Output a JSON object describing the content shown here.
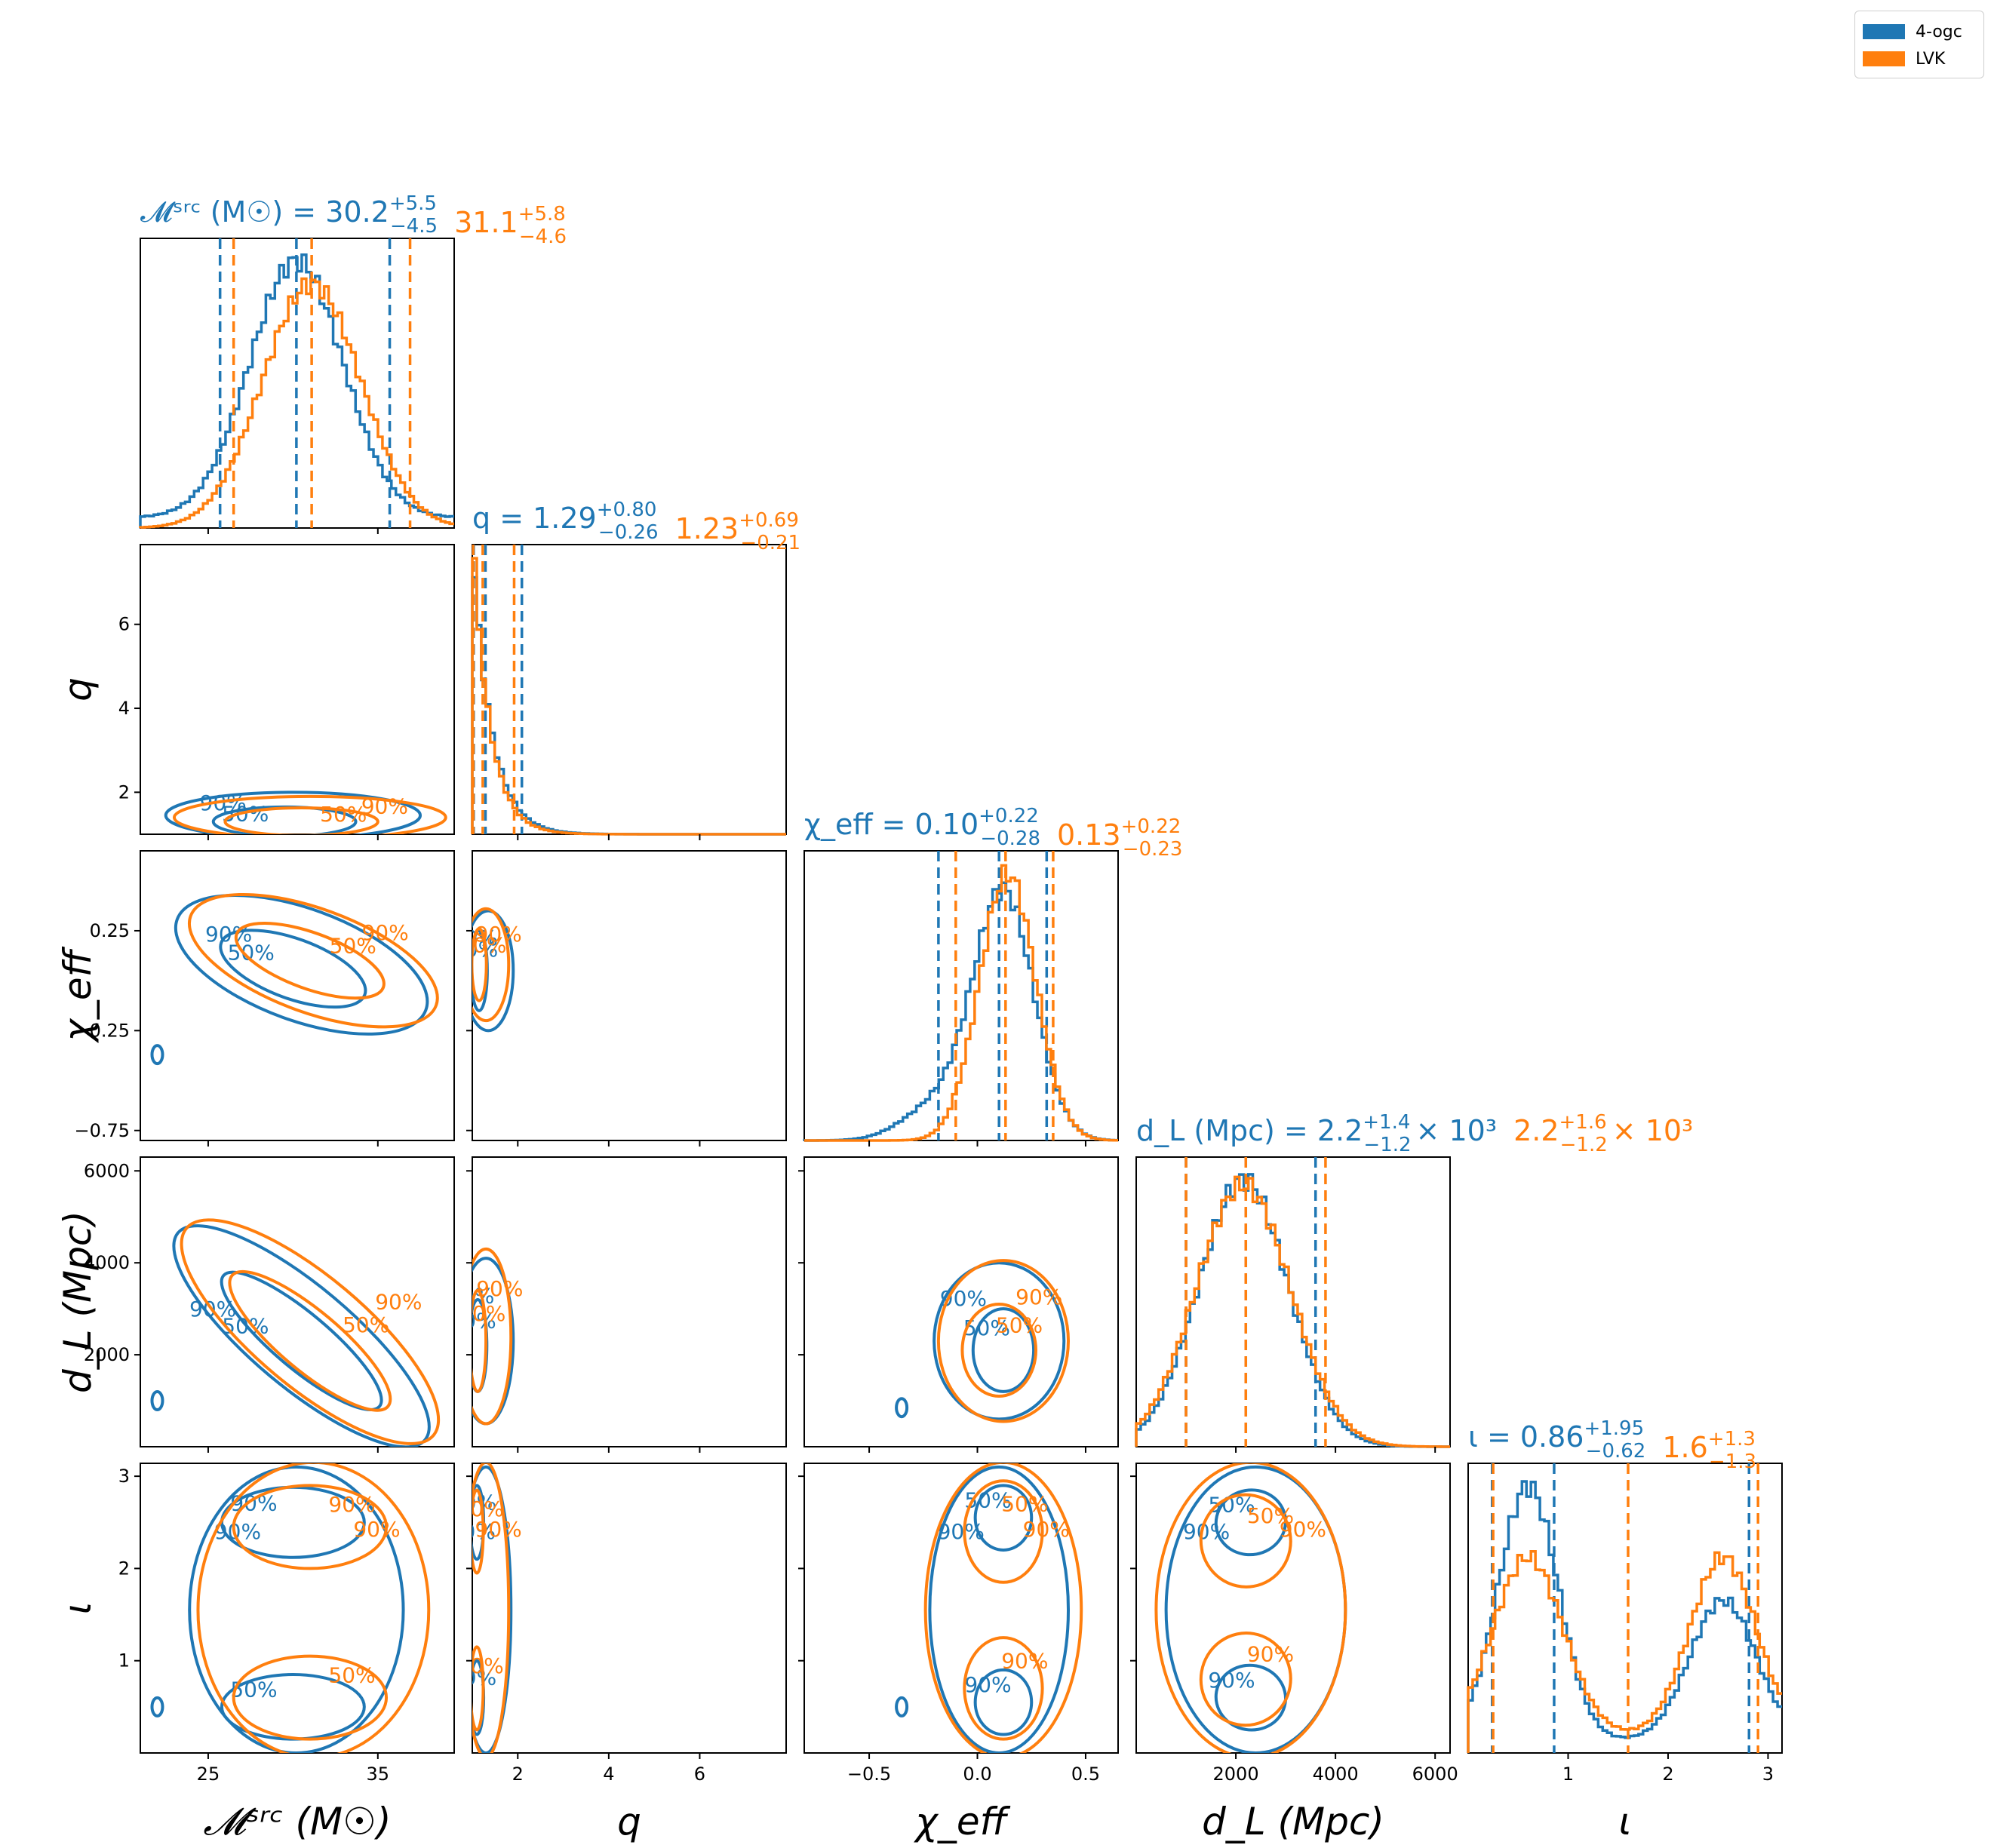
{
  "colors": {
    "series_a": "#1f77b4",
    "series_b": "#ff7f0e"
  },
  "legend": {
    "entries": [
      "4-ogc",
      "LVK"
    ],
    "placement": "top-right"
  },
  "chart_data": {
    "type": "corner",
    "series": [
      {
        "name": "4-ogc",
        "color": "#1f77b4"
      },
      {
        "name": "LVK",
        "color": "#ff7f0e"
      }
    ],
    "parameters": [
      {
        "key": "mchirp",
        "axis_label": "𝓜ˢʳᶜ (M☉)",
        "range": [
          21,
          39.5
        ],
        "ticks": [
          25,
          35
        ],
        "tick_labels": [
          "25",
          "35"
        ],
        "titles": [
          {
            "base": "𝓜ˢʳᶜ (M☉) = 30.2",
            "plus": "+5.5",
            "minus": "−4.5",
            "suffix": ""
          },
          {
            "base": "31.1",
            "plus": "+5.8",
            "minus": "−4.6",
            "suffix": ""
          }
        ],
        "quantiles": [
          [
            25.7,
            30.2,
            35.7
          ],
          [
            26.5,
            31.1,
            36.9
          ]
        ],
        "hist": [
          {
            "shape": "gauss",
            "peaks": [
              {
                "mu": 30.2,
                "sd": 2.75,
                "a": 1.0
              }
            ],
            "floor": 0.04
          },
          {
            "shape": "gauss",
            "peaks": [
              {
                "mu": 31.1,
                "sd": 2.9,
                "a": 0.95
              }
            ],
            "floor": 0.0
          }
        ]
      },
      {
        "key": "q",
        "axis_label": "q",
        "range": [
          1.0,
          7.9
        ],
        "ticks": [
          2,
          4,
          6
        ],
        "tick_labels": [
          "2",
          "4",
          "6"
        ],
        "titles": [
          {
            "base": "q = 1.29",
            "plus": "+0.80",
            "minus": "−0.26",
            "suffix": ""
          },
          {
            "base": "1.23",
            "plus": "+0.69",
            "minus": "−0.21",
            "suffix": ""
          }
        ],
        "quantiles": [
          [
            1.03,
            1.29,
            2.09
          ],
          [
            1.02,
            1.23,
            1.92
          ]
        ],
        "hist": [
          {
            "shape": "exp",
            "start": 1.0,
            "scale": 0.42,
            "a": 0.95
          },
          {
            "shape": "exp",
            "start": 1.0,
            "scale": 0.38,
            "a": 1.0
          }
        ]
      },
      {
        "key": "chi_eff",
        "axis_label": "χ_eff",
        "range": [
          -0.8,
          0.65
        ],
        "ticks": [
          -0.75,
          -0.25,
          0.25
        ],
        "tick_labels": [
          "−0.75",
          "−0.25",
          "0.25"
        ],
        "xticks": [
          -0.5,
          0.0,
          0.5
        ],
        "xtick_labels": [
          "−0.5",
          "0.0",
          "0.5"
        ],
        "titles": [
          {
            "base": "χ_eff = 0.10",
            "plus": "+0.22",
            "minus": "−0.28",
            "suffix": ""
          },
          {
            "base": "0.13",
            "plus": "+0.22",
            "minus": "−0.23",
            "suffix": ""
          }
        ],
        "quantiles": [
          [
            -0.18,
            0.1,
            0.32
          ],
          [
            -0.1,
            0.13,
            0.35
          ]
        ],
        "hist": [
          {
            "shape": "gauss",
            "peaks": [
              {
                "mu": 0.12,
                "sd": 0.14,
                "a": 0.93
              },
              {
                "mu": -0.2,
                "sd": 0.15,
                "a": 0.12
              }
            ],
            "floor": 0.0
          },
          {
            "shape": "gauss",
            "peaks": [
              {
                "mu": 0.14,
                "sd": 0.13,
                "a": 1.0
              }
            ],
            "floor": 0.0
          }
        ]
      },
      {
        "key": "dl",
        "axis_label": "d_L (Mpc)",
        "range": [
          0,
          6300
        ],
        "ticks": [
          2000,
          4000,
          6000
        ],
        "tick_labels": [
          "2000",
          "4000",
          "6000"
        ],
        "titles": [
          {
            "base": "d_L (Mpc) = 2.2",
            "plus": "+1.4",
            "minus": "−1.2",
            "suffix": "× 10³"
          },
          {
            "base": "2.2",
            "plus": "+1.6",
            "minus": "−1.2",
            "suffix": "× 10³"
          }
        ],
        "quantiles": [
          [
            1000,
            2200,
            3600
          ],
          [
            1000,
            2200,
            3800
          ]
        ],
        "hist": [
          {
            "shape": "gauss",
            "peaks": [
              {
                "mu": 2150,
                "sd": 900,
                "a": 1.0
              }
            ],
            "floor": 0.0
          },
          {
            "shape": "gauss",
            "peaks": [
              {
                "mu": 2150,
                "sd": 950,
                "a": 0.98
              }
            ],
            "floor": 0.0
          }
        ]
      },
      {
        "key": "inc",
        "axis_label": "ι",
        "range": [
          0,
          3.14
        ],
        "ticks": [
          1,
          2,
          3
        ],
        "tick_labels": [
          "1",
          "2",
          "3"
        ],
        "titles": [
          {
            "base": "ι = 0.86",
            "plus": "+1.95",
            "minus": "−0.62",
            "suffix": ""
          },
          {
            "base": "1.6",
            "plus": "+1.3",
            "minus": "−1.3",
            "suffix": ""
          }
        ],
        "quantiles": [
          [
            0.24,
            0.86,
            2.81
          ],
          [
            0.25,
            1.6,
            2.9
          ]
        ],
        "hist": [
          {
            "shape": "gauss",
            "peaks": [
              {
                "mu": 0.6,
                "sd": 0.3,
                "a": 1.0
              },
              {
                "mu": 2.55,
                "sd": 0.33,
                "a": 0.55
              }
            ],
            "floor": 0.05
          },
          {
            "shape": "gauss",
            "peaks": [
              {
                "mu": 0.6,
                "sd": 0.35,
                "a": 0.7
              },
              {
                "mu": 2.55,
                "sd": 0.33,
                "a": 0.7
              }
            ],
            "floor": 0.07
          }
        ]
      }
    ],
    "contour_levels": [
      "50%",
      "90%"
    ],
    "pairs": [
      {
        "x": "mchirp",
        "y": "q",
        "labels": [
          [
            "50%",
            "90%"
          ],
          [
            "50%",
            "90%"
          ]
        ],
        "contours": [
          [
            {
              "cx": 29.5,
              "cy": 1.3,
              "rx": 4.2,
              "ry": 0.35,
              "rot": 0
            },
            {
              "cx": 30.0,
              "cy": 1.45,
              "rx": 7.5,
              "ry": 0.55,
              "rot": 0
            }
          ],
          [
            {
              "cx": 30.5,
              "cy": 1.3,
              "rx": 4.5,
              "ry": 0.33,
              "rot": 0
            },
            {
              "cx": 31.0,
              "cy": 1.4,
              "rx": 8.0,
              "ry": 0.5,
              "rot": 0
            }
          ]
        ]
      },
      {
        "x": "mchirp",
        "y": "chi_eff",
        "labels": [
          [
            "50%",
            "90%"
          ],
          [
            "50%",
            "90%"
          ]
        ],
        "contours": [
          [
            {
              "cx": 30.0,
              "cy": 0.06,
              "rx": 4.5,
              "ry": 0.15,
              "rot": 20
            },
            {
              "cx": 30.5,
              "cy": 0.08,
              "rx": 7.8,
              "ry": 0.28,
              "rot": 20
            }
          ],
          [
            {
              "cx": 31.0,
              "cy": 0.1,
              "rx": 4.6,
              "ry": 0.14,
              "rot": 20
            },
            {
              "cx": 31.2,
              "cy": 0.1,
              "rx": 7.7,
              "ry": 0.26,
              "rot": 20
            }
          ]
        ],
        "island": {
          "x": 22.0,
          "y": -0.37
        }
      },
      {
        "x": "mchirp",
        "y": "dl",
        "labels": [
          [
            "50%",
            "90%"
          ],
          [
            "50%",
            "90%"
          ]
        ],
        "contours": [
          [
            {
              "cx": 30.5,
              "cy": 2300,
              "rx": 6.0,
              "ry": 600,
              "rot": 40
            },
            {
              "cx": 30.5,
              "cy": 2400,
              "rx": 9.5,
              "ry": 1100,
              "rot": 40
            }
          ],
          [
            {
              "cx": 31.0,
              "cy": 2300,
              "rx": 6.0,
              "ry": 650,
              "rot": 40
            },
            {
              "cx": 31.0,
              "cy": 2500,
              "rx": 9.5,
              "ry": 1200,
              "rot": 40
            }
          ]
        ],
        "island": {
          "x": 22.0,
          "y": 1000
        }
      },
      {
        "x": "mchirp",
        "y": "inc",
        "labels": [
          [
            "50%",
            "90%"
          ],
          [
            "50%",
            "90%"
          ]
        ],
        "contours": [
          [
            {
              "cx": 30.0,
              "cy": 0.5,
              "rx": 4.2,
              "ry": 0.35,
              "rot": 0
            },
            {
              "cx": 30.0,
              "cy": 2.5,
              "rx": 4.2,
              "ry": 0.38,
              "rot": 0
            },
            {
              "cx": 30.2,
              "cy": 1.55,
              "rx": 6.3,
              "ry": 1.55,
              "rot": 0
            }
          ],
          [
            {
              "cx": 31.0,
              "cy": 0.6,
              "rx": 4.5,
              "ry": 0.45,
              "rot": 0
            },
            {
              "cx": 31.0,
              "cy": 2.45,
              "rx": 4.5,
              "ry": 0.45,
              "rot": 0
            },
            {
              "cx": 31.2,
              "cy": 1.55,
              "rx": 6.8,
              "ry": 1.6,
              "rot": 0
            }
          ]
        ],
        "island": {
          "x": 22.0,
          "y": 0.5
        }
      },
      {
        "x": "q",
        "y": "chi_eff",
        "labels": [
          [
            "50%",
            "90%"
          ],
          [
            "50%",
            "90%"
          ]
        ],
        "contours": [
          [
            {
              "cx": 1.15,
              "cy": 0.05,
              "rx": 0.18,
              "ry": 0.2,
              "rot": 0
            },
            {
              "cx": 1.35,
              "cy": 0.05,
              "rx": 0.55,
              "ry": 0.3,
              "rot": 0
            }
          ],
          [
            {
              "cx": 1.15,
              "cy": 0.08,
              "rx": 0.16,
              "ry": 0.18,
              "rot": 0
            },
            {
              "cx": 1.3,
              "cy": 0.08,
              "rx": 0.5,
              "ry": 0.28,
              "rot": 0
            }
          ]
        ]
      },
      {
        "x": "q",
        "y": "dl",
        "labels": [
          [
            "50%",
            "90%"
          ],
          [
            "50%",
            "90%"
          ]
        ],
        "contours": [
          [
            {
              "cx": 1.12,
              "cy": 2200,
              "rx": 0.2,
              "ry": 1000,
              "rot": 0
            },
            {
              "cx": 1.3,
              "cy": 2300,
              "rx": 0.6,
              "ry": 1800,
              "rot": 0
            }
          ],
          [
            {
              "cx": 1.12,
              "cy": 2300,
              "rx": 0.18,
              "ry": 1100,
              "rot": 0
            },
            {
              "cx": 1.3,
              "cy": 2400,
              "rx": 0.55,
              "ry": 1900,
              "rot": 0
            }
          ]
        ]
      },
      {
        "x": "q",
        "y": "inc",
        "labels": [
          [
            "50%",
            "90%"
          ],
          [
            "50%",
            "90%"
          ]
        ],
        "contours": [
          [
            {
              "cx": 1.1,
              "cy": 2.5,
              "rx": 0.15,
              "ry": 0.4,
              "rot": 0
            },
            {
              "cx": 1.1,
              "cy": 0.6,
              "rx": 0.15,
              "ry": 0.4,
              "rot": 0
            },
            {
              "cx": 1.3,
              "cy": 1.55,
              "rx": 0.55,
              "ry": 1.55,
              "rot": 0
            }
          ],
          [
            {
              "cx": 1.1,
              "cy": 2.4,
              "rx": 0.14,
              "ry": 0.45,
              "rot": 0
            },
            {
              "cx": 1.1,
              "cy": 0.7,
              "rx": 0.14,
              "ry": 0.45,
              "rot": 0
            },
            {
              "cx": 1.3,
              "cy": 1.55,
              "rx": 0.5,
              "ry": 1.6,
              "rot": 0
            }
          ]
        ]
      },
      {
        "x": "chi_eff",
        "y": "dl",
        "labels": [
          [
            "50%",
            "90%"
          ],
          [
            "50%",
            "90%"
          ]
        ],
        "contours": [
          [
            {
              "cx": 0.12,
              "cy": 2100,
              "rx": 0.14,
              "ry": 900,
              "rot": 0
            },
            {
              "cx": 0.1,
              "cy": 2300,
              "rx": 0.3,
              "ry": 1700,
              "rot": 0
            }
          ],
          [
            {
              "cx": 0.1,
              "cy": 2100,
              "rx": 0.17,
              "ry": 1000,
              "rot": 0
            },
            {
              "cx": 0.12,
              "cy": 2300,
              "rx": 0.3,
              "ry": 1750,
              "rot": 0
            }
          ]
        ],
        "island": {
          "x": -0.35,
          "y": 850
        }
      },
      {
        "x": "chi_eff",
        "y": "inc",
        "labels": [
          [
            "50%",
            "90%"
          ],
          [
            "50%",
            "90%"
          ]
        ],
        "contours": [
          [
            {
              "cx": 0.12,
              "cy": 2.55,
              "rx": 0.13,
              "ry": 0.35,
              "rot": 0
            },
            {
              "cx": 0.12,
              "cy": 0.55,
              "rx": 0.13,
              "ry": 0.35,
              "rot": 0
            },
            {
              "cx": 0.1,
              "cy": 1.55,
              "rx": 0.32,
              "ry": 1.55,
              "rot": 0
            }
          ],
          [
            {
              "cx": 0.12,
              "cy": 2.4,
              "rx": 0.18,
              "ry": 0.55,
              "rot": 0
            },
            {
              "cx": 0.12,
              "cy": 0.7,
              "rx": 0.18,
              "ry": 0.55,
              "rot": 0
            },
            {
              "cx": 0.12,
              "cy": 1.55,
              "rx": 0.36,
              "ry": 1.6,
              "rot": 0
            }
          ]
        ],
        "island": {
          "x": -0.35,
          "y": 0.5
        }
      },
      {
        "x": "dl",
        "y": "inc",
        "labels": [
          [
            "50%",
            "90%"
          ],
          [
            "50%",
            "90%"
          ]
        ],
        "contours": [
          [
            {
              "cx": 2300,
              "cy": 2.5,
              "rx": 700,
              "ry": 0.35,
              "rot": -10
            },
            {
              "cx": 2300,
              "cy": 0.6,
              "rx": 700,
              "ry": 0.35,
              "rot": 10
            },
            {
              "cx": 2400,
              "cy": 1.55,
              "rx": 1800,
              "ry": 1.55,
              "rot": 0
            }
          ],
          [
            {
              "cx": 2200,
              "cy": 2.3,
              "rx": 900,
              "ry": 0.5,
              "rot": -10
            },
            {
              "cx": 2200,
              "cy": 0.8,
              "rx": 900,
              "ry": 0.5,
              "rot": 10
            },
            {
              "cx": 2300,
              "cy": 1.55,
              "rx": 1900,
              "ry": 1.6,
              "rot": 0
            }
          ]
        ]
      }
    ]
  }
}
